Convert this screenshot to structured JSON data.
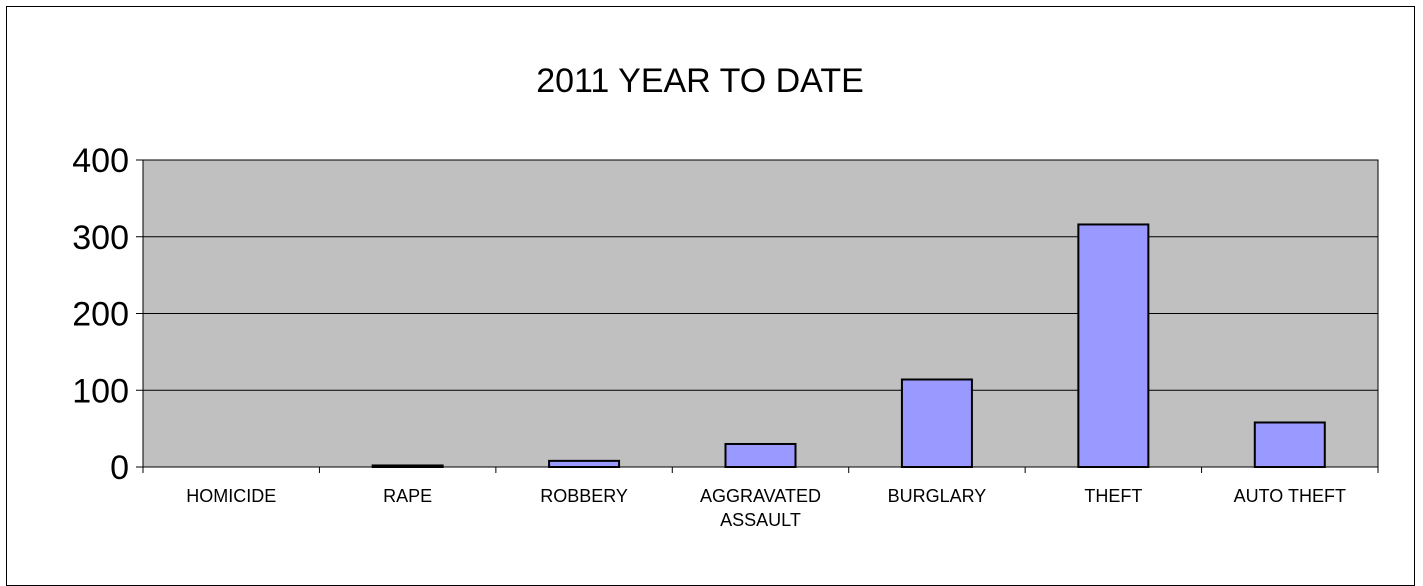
{
  "chart_data": {
    "type": "bar",
    "title": "2011 YEAR TO DATE",
    "xlabel": "",
    "ylabel": "",
    "categories": [
      "HOMICIDE",
      "RAPE",
      "ROBBERY",
      "AGGRAVATED ASSAULT",
      "BURGLARY",
      "THEFT",
      "AUTO THEFT"
    ],
    "category_lines": [
      [
        "HOMICIDE"
      ],
      [
        "RAPE"
      ],
      [
        "ROBBERY"
      ],
      [
        "AGGRAVATED",
        "ASSAULT"
      ],
      [
        "BURGLARY"
      ],
      [
        "THEFT"
      ],
      [
        "AUTO THEFT"
      ]
    ],
    "values": [
      0,
      2,
      8,
      30,
      114,
      316,
      58
    ],
    "ylim": [
      0,
      400
    ],
    "yticks": [
      0,
      100,
      200,
      300,
      400
    ],
    "grid": true,
    "legend": "none",
    "colors": {
      "bar_fill": "#9999ff",
      "plot_background": "#c0c0c0",
      "gridline": "#000000",
      "frame": "#000000"
    }
  }
}
